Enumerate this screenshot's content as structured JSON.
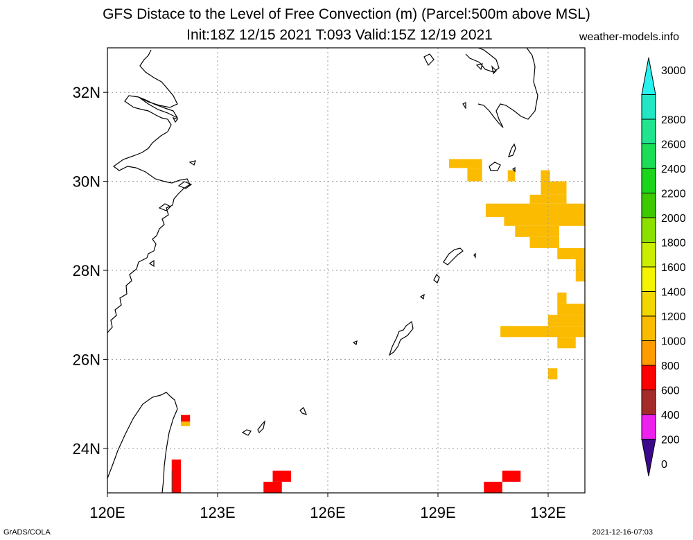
{
  "title_line1": "GFS Distace to the Level of Free Convection (m) (Parcel:500m above MSL)",
  "title_line2": "Init:18Z 12/15 2021 T:093 Valid:15Z 12/19 2021",
  "site": "weather-models.info",
  "credit": "GrADS/COLA",
  "timestamp": "2021-12-16-07:03",
  "map": {
    "lon_range": [
      120,
      133.0
    ],
    "lat_range": [
      23.0,
      33.0
    ],
    "lon_ticks": [
      120,
      123,
      126,
      129,
      132
    ],
    "lat_ticks": [
      24,
      26,
      28,
      30,
      32
    ],
    "lon_tick_labels": [
      "120E",
      "123E",
      "126E",
      "129E",
      "132E"
    ],
    "lat_tick_labels": [
      "24N",
      "26N",
      "28N",
      "30N",
      "32N"
    ],
    "grid": true
  },
  "colorbar": {
    "levels": [
      "0",
      "200",
      "400",
      "600",
      "800",
      "1000",
      "1200",
      "1400",
      "1600",
      "1800",
      "2000",
      "2200",
      "2400",
      "2600",
      "2800",
      "3000"
    ],
    "colors": [
      "#3b0a8c",
      "#ee22ee",
      "#a52a2a",
      "#ff0000",
      "#ff9d00",
      "#fbbb00",
      "#f3d600",
      "#f4f400",
      "#cbee00",
      "#8be000",
      "#3ec800",
      "#1bd51b",
      "#1ddc55",
      "#21e58e",
      "#23e7c4",
      "#27f2f0"
    ]
  },
  "chart_data": {
    "type": "heatmap",
    "cells": [
      {
        "lon0": 129.3,
        "lon1": 130.2,
        "lat0": 30.3,
        "lat1": 30.5,
        "c": "#fbbb00"
      },
      {
        "lon0": 129.8,
        "lon1": 130.2,
        "lat0": 30.0,
        "lat1": 30.3,
        "c": "#fbbb00"
      },
      {
        "lon0": 130.9,
        "lon1": 131.1,
        "lat0": 30.0,
        "lat1": 30.25,
        "c": "#fbbb00"
      },
      {
        "lon0": 131.8,
        "lon1": 132.05,
        "lat0": 30.0,
        "lat1": 30.25,
        "c": "#fbbb00"
      },
      {
        "lon0": 131.8,
        "lon1": 132.5,
        "lat0": 29.7,
        "lat1": 30.0,
        "c": "#fbbb00"
      },
      {
        "lon0": 131.5,
        "lon1": 132.5,
        "lat0": 29.5,
        "lat1": 29.7,
        "c": "#fbbb00"
      },
      {
        "lon0": 130.3,
        "lon1": 133.0,
        "lat0": 29.2,
        "lat1": 29.5,
        "c": "#fbbb00"
      },
      {
        "lon0": 130.8,
        "lon1": 133.0,
        "lat0": 29.0,
        "lat1": 29.2,
        "c": "#fbbb00"
      },
      {
        "lon0": 131.1,
        "lon1": 132.3,
        "lat0": 28.75,
        "lat1": 29.0,
        "c": "#fbbb00"
      },
      {
        "lon0": 131.5,
        "lon1": 132.3,
        "lat0": 28.5,
        "lat1": 28.75,
        "c": "#fbbb00"
      },
      {
        "lon0": 132.25,
        "lon1": 133.0,
        "lat0": 28.25,
        "lat1": 28.5,
        "c": "#fbbb00"
      },
      {
        "lon0": 132.75,
        "lon1": 133.0,
        "lat0": 27.75,
        "lat1": 28.25,
        "c": "#fbbb00"
      },
      {
        "lon0": 132.25,
        "lon1": 132.5,
        "lat0": 27.25,
        "lat1": 27.5,
        "c": "#fbbb00"
      },
      {
        "lon0": 132.25,
        "lon1": 133.0,
        "lat0": 27.0,
        "lat1": 27.25,
        "c": "#fbbb00"
      },
      {
        "lon0": 132.0,
        "lon1": 133.0,
        "lat0": 26.75,
        "lat1": 27.0,
        "c": "#fbbb00"
      },
      {
        "lon0": 130.7,
        "lon1": 133.0,
        "lat0": 26.5,
        "lat1": 26.75,
        "c": "#fbbb00"
      },
      {
        "lon0": 132.25,
        "lon1": 132.75,
        "lat0": 26.25,
        "lat1": 26.5,
        "c": "#fbbb00"
      },
      {
        "lon0": 132.0,
        "lon1": 132.25,
        "lat0": 25.55,
        "lat1": 25.8,
        "c": "#fbbb00"
      },
      {
        "lon0": 122.0,
        "lon1": 122.25,
        "lat0": 24.6,
        "lat1": 24.75,
        "c": "#ff0000"
      },
      {
        "lon0": 122.0,
        "lon1": 122.25,
        "lat0": 24.5,
        "lat1": 24.6,
        "c": "#fbbb00"
      },
      {
        "lon0": 121.75,
        "lon1": 122.0,
        "lat0": 23.0,
        "lat1": 23.75,
        "c": "#ff0000"
      },
      {
        "lon0": 121.75,
        "lon1": 121.8,
        "lat0": 23.0,
        "lat1": 23.5,
        "c": "#a52a2a"
      },
      {
        "lon0": 124.25,
        "lon1": 124.75,
        "lat0": 23.0,
        "lat1": 23.25,
        "c": "#ff0000"
      },
      {
        "lon0": 124.5,
        "lon1": 125.0,
        "lat0": 23.25,
        "lat1": 23.5,
        "c": "#ff0000"
      },
      {
        "lon0": 130.25,
        "lon1": 130.75,
        "lat0": 23.0,
        "lat1": 23.25,
        "c": "#ff0000"
      },
      {
        "lon0": 130.75,
        "lon1": 131.25,
        "lat0": 23.25,
        "lat1": 23.5,
        "c": "#ff0000"
      }
    ]
  }
}
